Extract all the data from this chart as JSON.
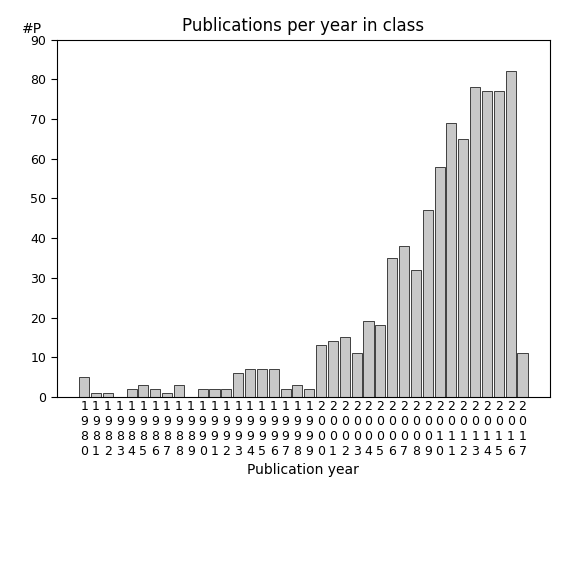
{
  "title": "Publications per year in class",
  "xlabel": "Publication year",
  "ylabel": "#P",
  "years": [
    1980,
    1981,
    1982,
    1983,
    1984,
    1985,
    1986,
    1987,
    1988,
    1989,
    1990,
    1991,
    1992,
    1993,
    1994,
    1995,
    1996,
    1997,
    1998,
    1999,
    2000,
    2001,
    2002,
    2003,
    2004,
    2005,
    2006,
    2007,
    2008,
    2009,
    2010,
    2011,
    2012,
    2013,
    2014,
    2015,
    2016,
    2017
  ],
  "values": [
    5,
    1,
    1,
    0,
    2,
    3,
    2,
    1,
    3,
    0,
    2,
    2,
    2,
    6,
    7,
    7,
    7,
    2,
    3,
    2,
    13,
    14,
    15,
    11,
    19,
    18,
    35,
    38,
    32,
    47,
    58,
    69,
    65,
    78,
    77,
    77,
    82,
    11
  ],
  "bar_color": "#c8c8c8",
  "bar_edgecolor": "#000000",
  "ylim": [
    0,
    90
  ],
  "yticks": [
    0,
    10,
    20,
    30,
    40,
    50,
    60,
    70,
    80,
    90
  ],
  "background_color": "#ffffff",
  "title_fontsize": 12,
  "axis_label_fontsize": 10,
  "tick_fontsize": 9
}
